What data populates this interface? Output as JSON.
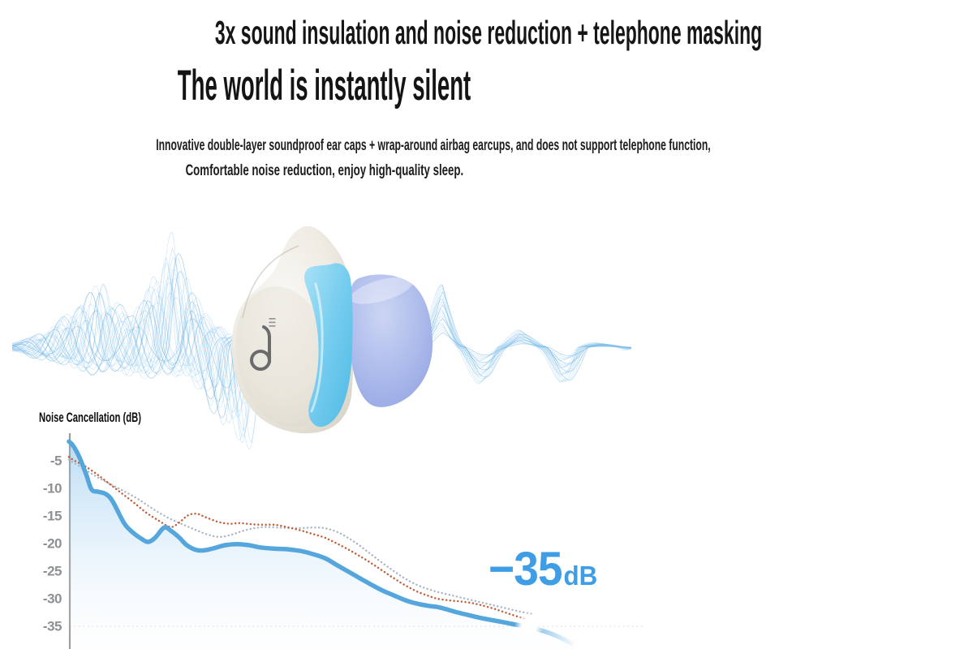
{
  "header": {
    "headline": "3x sound insulation and noise reduction + telephone masking",
    "title": "The world is instantly silent",
    "subtitle_line1": "Innovative double-layer soundproof ear caps + wrap-around airbag earcups, and does not support telephone function,",
    "subtitle_line2": "Comfortable noise reduction, enjoy high-quality sleep."
  },
  "product": {
    "description": "sleep earbud with white body, cyan wrap-around wing and periwinkle dome ear tip, surrounded by sound-wave line art",
    "logo_mark": "soundcore-d-logo",
    "colors": {
      "body": "#efece5",
      "wing": "#7ccfef",
      "dome": "#aebceb",
      "waves": "#7ebde9"
    }
  },
  "colors": {
    "accent_blue": "#3f9de5",
    "axis_gray": "#9e9a94",
    "tick_gray": "#8d9094",
    "text_black": "#161616"
  },
  "chart_data": {
    "type": "line",
    "title": "Noise Cancellation (dB)",
    "ylabel": "dB",
    "ylim": [
      0,
      -38
    ],
    "yticks": [
      "-5",
      "-10",
      "-15",
      "-20",
      "-25",
      "-30",
      "-35"
    ],
    "ytick_values": [
      -5,
      -10,
      -15,
      -20,
      -25,
      -30,
      -35
    ],
    "grid": "single dashed gridline at -35 dB",
    "legend": "none",
    "annotation": {
      "value": "−35",
      "unit": "dB"
    },
    "end_marker": {
      "x_pct": 79.3,
      "db": -35.0
    },
    "series": [
      {
        "name": "anc-curve-main",
        "style": "solid",
        "color": "#55a6dd",
        "fill": "blue-gradient",
        "points": [
          [
            0,
            -1.5
          ],
          [
            0.8,
            -2.4
          ],
          [
            1.9,
            -4.6
          ],
          [
            3,
            -7.6
          ],
          [
            3.9,
            -10.2
          ],
          [
            5,
            -10.6
          ],
          [
            6.3,
            -11.0
          ],
          [
            7.5,
            -12.3
          ],
          [
            9.5,
            -16.3
          ],
          [
            11,
            -18.0
          ],
          [
            12.3,
            -19.0
          ],
          [
            13.6,
            -19.7
          ],
          [
            14.8,
            -19.0
          ],
          [
            16.4,
            -17.1
          ],
          [
            17.6,
            -17.7
          ],
          [
            19,
            -18.9
          ],
          [
            20.3,
            -20.3
          ],
          [
            22.1,
            -21.2
          ],
          [
            24,
            -21.1
          ],
          [
            26.9,
            -20.3
          ],
          [
            29,
            -20.1
          ],
          [
            31,
            -20.3
          ],
          [
            33,
            -20.7
          ],
          [
            35,
            -20.9
          ],
          [
            37,
            -21.0
          ],
          [
            39,
            -21.2
          ],
          [
            41,
            -21.6
          ],
          [
            44,
            -22.6
          ],
          [
            46,
            -23.8
          ],
          [
            48,
            -25.0
          ],
          [
            50,
            -26.2
          ],
          [
            52,
            -27.4
          ],
          [
            54,
            -28.5
          ],
          [
            56,
            -29.4
          ],
          [
            58,
            -30.3
          ],
          [
            60,
            -30.9
          ],
          [
            62,
            -31.3
          ],
          [
            63.5,
            -31.5
          ],
          [
            65,
            -31.9
          ],
          [
            67,
            -32.5
          ],
          [
            69,
            -33.0
          ],
          [
            71,
            -33.5
          ],
          [
            73,
            -33.9
          ],
          [
            75,
            -34.3
          ],
          [
            77,
            -34.7
          ],
          [
            79.3,
            -35.0
          ],
          [
            81,
            -35.6
          ],
          [
            83,
            -36.3
          ],
          [
            85,
            -37.2
          ],
          [
            86.8,
            -38.2
          ]
        ]
      },
      {
        "name": "reference-curve-orange",
        "style": "dotted",
        "color": "#c25c33",
        "points": [
          [
            0,
            -4.3
          ],
          [
            1,
            -5.0
          ],
          [
            2.8,
            -6.0
          ],
          [
            4.9,
            -7.5
          ],
          [
            7,
            -9.2
          ],
          [
            9.1,
            -10.9
          ],
          [
            11.2,
            -12.6
          ],
          [
            13.3,
            -14.4
          ],
          [
            15.4,
            -15.8
          ],
          [
            17.5,
            -17.0
          ],
          [
            19,
            -16.2
          ],
          [
            20.5,
            -14.9
          ],
          [
            22,
            -14.6
          ],
          [
            23.5,
            -15.2
          ],
          [
            25.5,
            -16.0
          ],
          [
            27.5,
            -16.4
          ],
          [
            29.5,
            -16.3
          ],
          [
            31.5,
            -16.5
          ],
          [
            33.5,
            -16.6
          ],
          [
            35.5,
            -16.6
          ],
          [
            37.5,
            -17.0
          ],
          [
            39.5,
            -17.5
          ],
          [
            41.5,
            -18.1
          ],
          [
            44,
            -18.9
          ],
          [
            46,
            -19.9
          ],
          [
            48,
            -21.0
          ],
          [
            50,
            -22.2
          ],
          [
            52,
            -23.5
          ],
          [
            54,
            -24.9
          ],
          [
            56,
            -26.3
          ],
          [
            58,
            -27.6
          ],
          [
            60,
            -28.7
          ],
          [
            62,
            -29.5
          ],
          [
            63.5,
            -30.0
          ],
          [
            65.5,
            -30.3
          ],
          [
            67.5,
            -30.5
          ],
          [
            69.5,
            -30.8
          ],
          [
            71.5,
            -31.3
          ],
          [
            73.5,
            -31.9
          ],
          [
            75.5,
            -32.6
          ],
          [
            77.5,
            -33.3
          ],
          [
            78.8,
            -33.7
          ]
        ]
      },
      {
        "name": "reference-curve-gray",
        "style": "dotted",
        "color": "#a9b6c6",
        "points": [
          [
            0,
            -4.8
          ],
          [
            2,
            -6.1
          ],
          [
            4,
            -7.4
          ],
          [
            6,
            -8.6
          ],
          [
            8,
            -9.7
          ],
          [
            10,
            -10.8
          ],
          [
            12,
            -12.0
          ],
          [
            14,
            -13.4
          ],
          [
            16,
            -14.7
          ],
          [
            18,
            -15.8
          ],
          [
            20,
            -16.7
          ],
          [
            22,
            -17.6
          ],
          [
            24,
            -18.4
          ],
          [
            26,
            -18.8
          ],
          [
            28,
            -18.4
          ],
          [
            30,
            -17.7
          ],
          [
            32,
            -17.2
          ],
          [
            34,
            -17.0
          ],
          [
            36,
            -17.1
          ],
          [
            38,
            -17.2
          ],
          [
            40,
            -17.2
          ],
          [
            42,
            -17.1
          ],
          [
            44,
            -17.2
          ],
          [
            46,
            -17.8
          ],
          [
            48,
            -18.9
          ],
          [
            50,
            -20.3
          ],
          [
            52,
            -21.9
          ],
          [
            54,
            -23.5
          ],
          [
            56,
            -25.0
          ],
          [
            58,
            -26.4
          ],
          [
            60,
            -27.5
          ],
          [
            62,
            -28.3
          ],
          [
            64,
            -28.9
          ],
          [
            66,
            -29.4
          ],
          [
            68,
            -29.9
          ],
          [
            70,
            -30.4
          ],
          [
            72,
            -30.9
          ],
          [
            74,
            -31.4
          ],
          [
            76,
            -31.9
          ],
          [
            78,
            -32.4
          ],
          [
            80,
            -32.8
          ]
        ]
      }
    ]
  }
}
